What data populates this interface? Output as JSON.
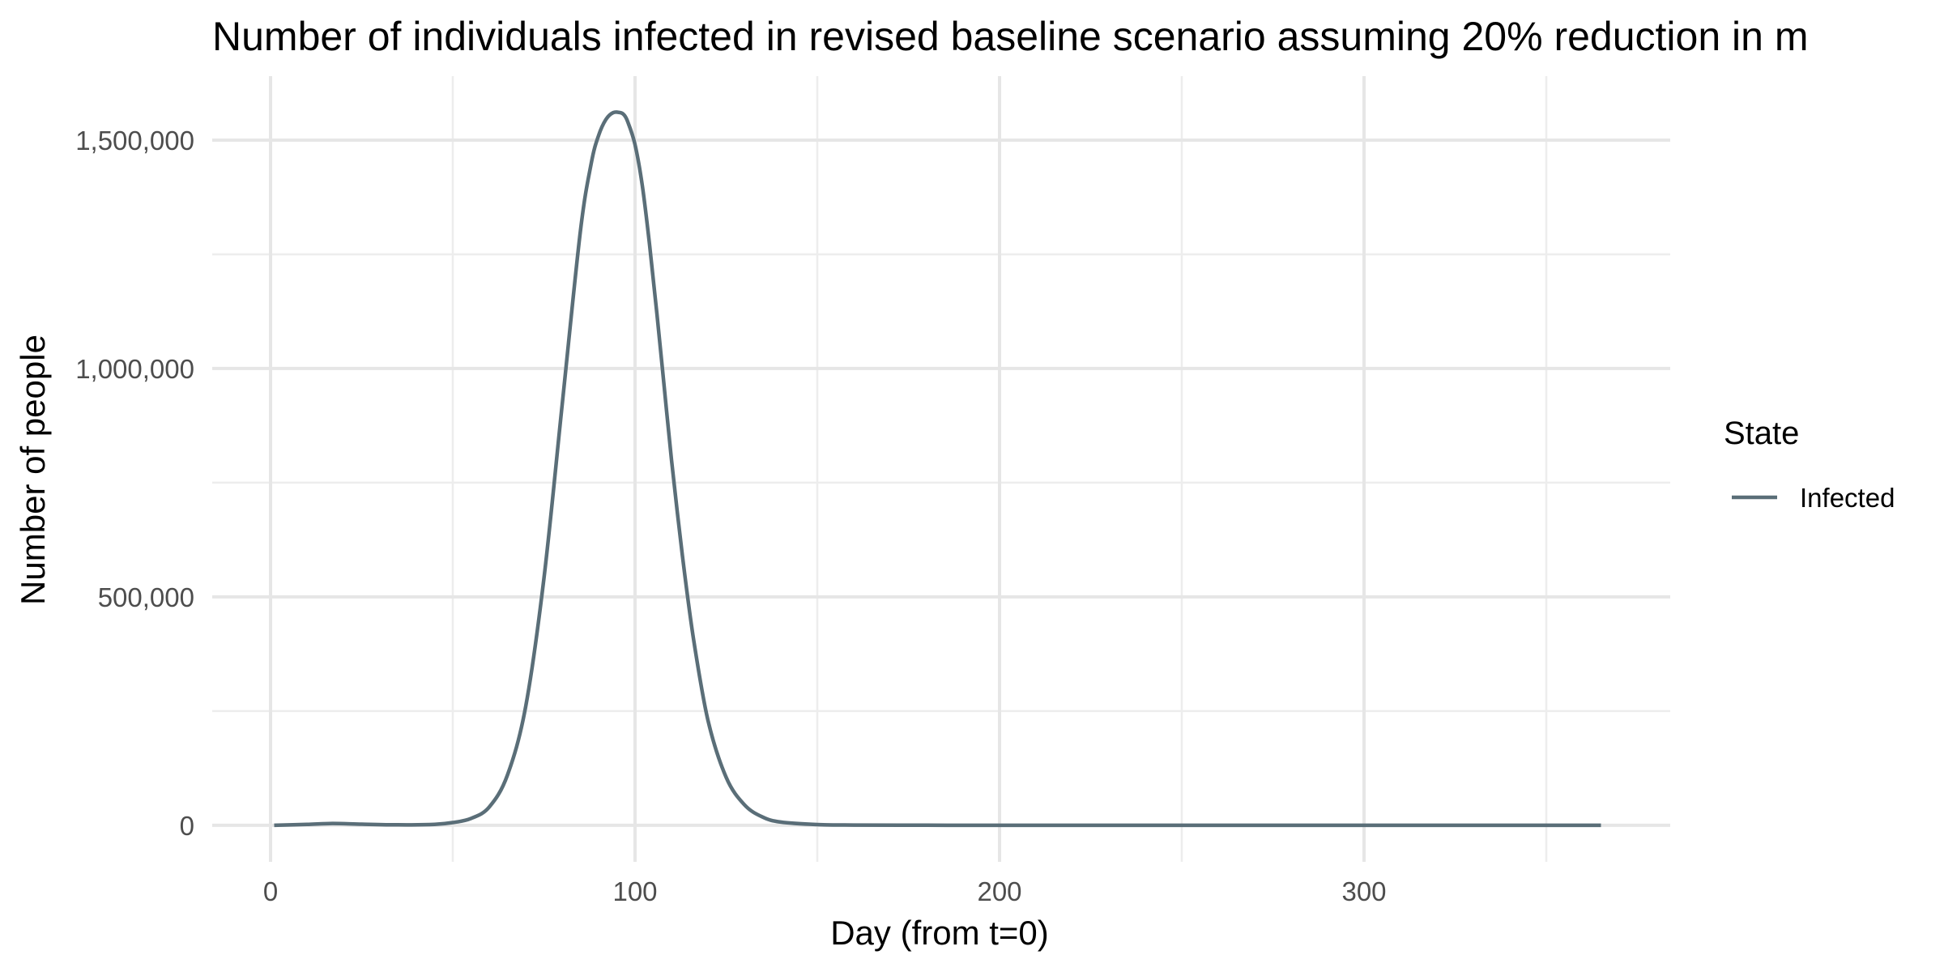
{
  "chart_data": {
    "type": "line",
    "title": "Number of individuals infected in revised baseline scenario assuming 20% reduction in m",
    "xlabel": "Day (from t=0)",
    "ylabel": "Number of people",
    "xlim": [
      -16,
      384
    ],
    "ylim": [
      -80000,
      1640000
    ],
    "x_ticks": [
      0,
      100,
      200,
      300
    ],
    "x_tick_labels": [
      "0",
      "100",
      "200",
      "300"
    ],
    "x_minor_ticks": [
      50,
      150,
      250,
      350
    ],
    "y_ticks": [
      0,
      500000,
      1000000,
      1500000
    ],
    "y_tick_labels": [
      "0",
      "500,000",
      "1,000,000",
      "1,500,000"
    ],
    "y_minor_ticks": [
      250000,
      750000,
      1250000
    ],
    "grid": true,
    "legend": {
      "title": "State",
      "position": "right"
    },
    "series": [
      {
        "name": "Infected",
        "color": "#5a6e78",
        "x": [
          1,
          10,
          17,
          25,
          35,
          45,
          50,
          55,
          60,
          65,
          70,
          75,
          80,
          85,
          88,
          90,
          92,
          94,
          96,
          97,
          98,
          100,
          102,
          104,
          106,
          108,
          110,
          113,
          116,
          120,
          125,
          130,
          135,
          140,
          150,
          160,
          180,
          200,
          250,
          300,
          365
        ],
        "y": [
          0,
          2000,
          4000,
          2500,
          1000,
          2000,
          6000,
          15000,
          40000,
          110000,
          260000,
          540000,
          920000,
          1300000,
          1450000,
          1510000,
          1545000,
          1560000,
          1560000,
          1555000,
          1540000,
          1490000,
          1400000,
          1270000,
          1120000,
          960000,
          800000,
          590000,
          410000,
          230000,
          105000,
          45000,
          18000,
          7000,
          1500,
          500,
          100,
          0,
          0,
          0,
          0
        ]
      }
    ]
  }
}
